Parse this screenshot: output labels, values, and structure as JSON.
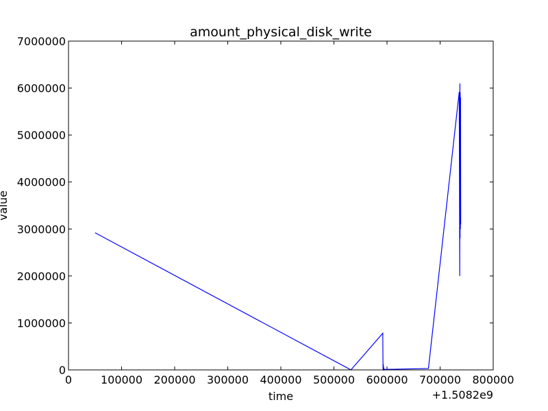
{
  "chart_data": {
    "type": "line",
    "title": "amount_physical_disk_write",
    "xlabel": "time",
    "ylabel": "value",
    "x_offset_label": "+1.5082e9",
    "xlim": [
      0,
      800000
    ],
    "ylim": [
      0,
      7000000
    ],
    "x_ticks": [
      0,
      100000,
      200000,
      300000,
      400000,
      500000,
      600000,
      700000,
      800000
    ],
    "x_tick_labels": [
      "0",
      "100000",
      "200000",
      "300000",
      "400000",
      "500000",
      "600000",
      "700000",
      "800000"
    ],
    "y_ticks": [
      0,
      1000000,
      2000000,
      3000000,
      4000000,
      5000000,
      6000000,
      7000000
    ],
    "y_tick_labels": [
      "0",
      "1000000",
      "2000000",
      "3000000",
      "4000000",
      "5000000",
      "6000000",
      "7000000"
    ],
    "grid": false,
    "series": [
      {
        "color": "#0000ff",
        "x": [
          50000,
          532000,
          592000,
          592500,
          593000,
          593500,
          594000,
          594500,
          595000,
          678000,
          736000,
          737000,
          737300,
          737600,
          737900,
          738200,
          738500,
          738800
        ],
        "y": [
          2920000,
          0,
          780000,
          0,
          120000,
          0,
          50000,
          0,
          10000,
          30000,
          5920000,
          2000000,
          6100000,
          2800000,
          5900000,
          3000000,
          5800000,
          3100000
        ]
      }
    ]
  }
}
